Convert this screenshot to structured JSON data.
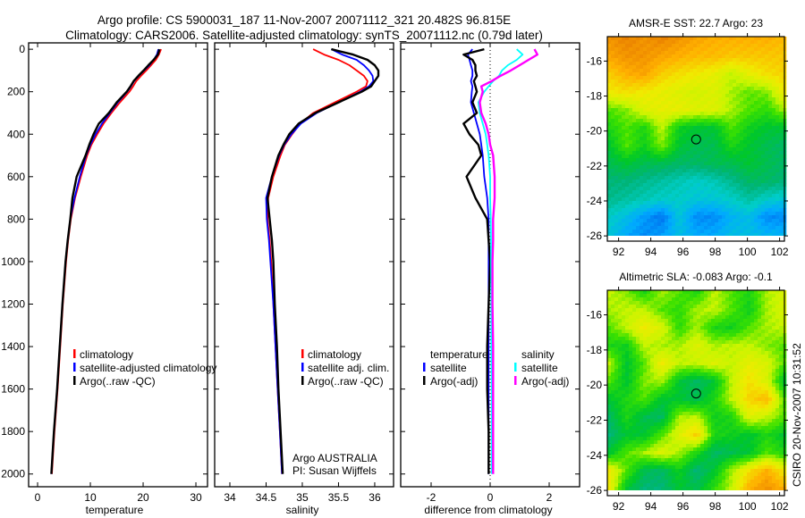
{
  "title": {
    "line1": "Argo profile: CS 5900031_187 11-Nov-2007 20071112_321 20.482S 96.815E",
    "line2": "Climatology: CARS2006. Satellite-adjusted climatology: synTS_20071112.nc (0.79d later)"
  },
  "footer_stamp": "CSIRO 20-Nov-2007 10:31:52",
  "credits": {
    "line1": "Argo AUSTRALIA",
    "line2": "PI: Susan Wijffels"
  },
  "chart_data": [
    {
      "type": "line",
      "id": "temperature",
      "xlabel": "temperature",
      "ylabel": "",
      "xlim": [
        -1.7,
        32.2
      ],
      "ylim": [
        2060,
        -30
      ],
      "xticks": [
        0,
        10,
        20,
        30
      ],
      "yticks": [
        0,
        200,
        400,
        600,
        800,
        1000,
        1200,
        1400,
        1600,
        1800,
        2000
      ],
      "depth": [
        0,
        25,
        50,
        75,
        100,
        125,
        150,
        175,
        200,
        250,
        300,
        350,
        400,
        450,
        500,
        600,
        700,
        800,
        900,
        1000,
        1200,
        1400,
        1600,
        1800,
        2000
      ],
      "series": [
        {
          "name": "climatology",
          "color": "#ff0000",
          "values": [
            23.4,
            23.0,
            22.4,
            21.5,
            20.6,
            19.6,
            18.7,
            18.1,
            17.4,
            15.6,
            14.0,
            12.5,
            11.3,
            10.2,
            9.4,
            8.2,
            7.1,
            6.3,
            5.8,
            5.4,
            4.8,
            4.3,
            3.8,
            3.2,
            2.7
          ]
        },
        {
          "name": "satellite-adjusted climatology",
          "color": "#0000ff",
          "values": [
            22.9,
            22.6,
            22.0,
            21.2,
            20.2,
            19.2,
            18.3,
            17.7,
            17.0,
            15.2,
            13.7,
            12.2,
            11.0,
            10.0,
            9.2,
            8.0,
            7.0,
            6.2,
            5.7,
            5.3,
            4.7,
            4.2,
            3.7,
            3.1,
            2.6
          ]
        },
        {
          "name": "Argo(..raw -QC)",
          "color": "#000000",
          "values": [
            23.1,
            22.8,
            22.0,
            21.0,
            20.1,
            19.1,
            18.2,
            17.6,
            16.9,
            15.0,
            13.5,
            11.6,
            10.6,
            9.8,
            9.1,
            7.4,
            6.6,
            6.2,
            5.7,
            5.3,
            4.7,
            4.2,
            3.7,
            3.1,
            2.6
          ]
        }
      ],
      "legend": [
        "climatology",
        "satellite-adjusted climatology",
        "Argo(..raw -QC)"
      ]
    },
    {
      "type": "line",
      "id": "salinity",
      "xlabel": "salinity",
      "xlim": [
        33.79,
        36.26
      ],
      "ylim": [
        2060,
        -30
      ],
      "xticks": [
        34,
        34.5,
        35,
        35.5,
        36
      ],
      "depth": [
        0,
        25,
        50,
        75,
        100,
        125,
        150,
        175,
        200,
        250,
        300,
        350,
        400,
        450,
        500,
        600,
        700,
        800,
        900,
        1000,
        1200,
        1400,
        1600,
        1800,
        2000
      ],
      "series": [
        {
          "name": "climatology",
          "color": "#ff0000",
          "values": [
            35.15,
            35.3,
            35.5,
            35.65,
            35.75,
            35.85,
            35.9,
            35.88,
            35.75,
            35.45,
            35.15,
            34.97,
            34.86,
            34.76,
            34.7,
            34.6,
            34.53,
            34.52,
            34.55,
            34.57,
            34.6,
            34.63,
            34.66,
            34.69,
            34.72
          ]
        },
        {
          "name": "satellite adj. clim.",
          "color": "#0000ff",
          "values": [
            35.4,
            35.55,
            35.75,
            35.85,
            35.92,
            35.97,
            35.98,
            35.92,
            35.8,
            35.5,
            35.2,
            34.98,
            34.85,
            34.75,
            34.68,
            34.58,
            34.5,
            34.51,
            34.54,
            34.56,
            34.6,
            34.63,
            34.66,
            34.69,
            34.72
          ]
        },
        {
          "name": "Argo(..raw -QC)",
          "color": "#000000",
          "values": [
            35.4,
            35.7,
            35.9,
            36.0,
            36.05,
            36.05,
            36.0,
            35.95,
            35.82,
            35.5,
            35.18,
            34.95,
            34.82,
            34.74,
            34.67,
            34.58,
            34.52,
            34.55,
            34.58,
            34.6,
            34.62,
            34.65,
            34.67,
            34.7,
            34.73
          ]
        }
      ],
      "legend": [
        "climatology",
        "satellite adj. clim.",
        "Argo(..raw -QC)"
      ]
    },
    {
      "type": "line",
      "id": "difference",
      "xlabel": "difference from climatology",
      "xlim": [
        -3.03,
        3.03
      ],
      "ylim": [
        2060,
        -30
      ],
      "xticks": [
        -2,
        0,
        2
      ],
      "depth": [
        0,
        25,
        50,
        75,
        100,
        125,
        150,
        175,
        200,
        250,
        300,
        350,
        400,
        450,
        500,
        600,
        700,
        800,
        900,
        1000,
        1200,
        1400,
        1600,
        1800,
        2000
      ],
      "series": [
        {
          "name": "temperature satellite",
          "group": "temperature",
          "label": "satellite",
          "color": "#0000ff",
          "values": [
            -0.6,
            -0.75,
            -0.7,
            -0.65,
            -0.6,
            -0.6,
            -0.65,
            -0.6,
            -0.62,
            -0.65,
            -0.55,
            -0.45,
            -0.35,
            -0.3,
            -0.25,
            -0.2,
            -0.1,
            -0.05,
            -0.05,
            -0.05,
            -0.05,
            -0.05,
            -0.05,
            -0.05,
            -0.05
          ]
        },
        {
          "name": "temperature Argo(-adj)",
          "group": "temperature",
          "label": "Argo(-adj)",
          "color": "#000000",
          "values": [
            -0.2,
            -0.9,
            -0.6,
            -0.5,
            -0.5,
            -0.45,
            -0.55,
            -0.5,
            -0.45,
            -0.6,
            -0.45,
            -0.9,
            -0.7,
            -0.4,
            -0.3,
            -0.8,
            -0.5,
            -0.1,
            -0.05,
            0,
            -0.05,
            -0.1,
            -0.1,
            -0.05,
            -0.05
          ]
        },
        {
          "name": "salinity satellite",
          "group": "salinity",
          "label": "satellite",
          "color": "#00ffff",
          "values": [
            0.9,
            1.1,
            0.9,
            0.6,
            0.4,
            0.3,
            0.1,
            -0.05,
            -0.2,
            -0.4,
            -0.35,
            -0.25,
            -0.15,
            -0.1,
            -0.05,
            0,
            0,
            0.02,
            0.03,
            0.03,
            0.04,
            0.04,
            0.05,
            0.05,
            0.05
          ]
        },
        {
          "name": "salinity Argo(-adj)",
          "group": "salinity",
          "label": "Argo(-adj)",
          "color": "#ff00ff",
          "values": [
            1.5,
            1.6,
            1.3,
            1.0,
            0.7,
            0.35,
            0.05,
            -0.3,
            -0.25,
            -0.35,
            -0.3,
            -0.15,
            -0.05,
            0,
            0.1,
            0.15,
            0.15,
            0.1,
            0.1,
            0.08,
            0.08,
            0.1,
            0.1,
            0.1,
            0.1
          ]
        }
      ],
      "legend_headers": [
        "temperature",
        "salinity"
      ],
      "legend_labels": [
        "satellite",
        "Argo(-adj)"
      ]
    },
    {
      "type": "heatmap",
      "id": "sst",
      "title": "AMSR-E SST: 22.7 Argo: 23",
      "xlim": [
        91.3,
        102.3
      ],
      "ylim": [
        -26.3,
        -14.6
      ],
      "xticks": [
        92,
        94,
        96,
        98,
        100,
        102
      ],
      "yticks": [
        -16,
        -18,
        -20,
        -22,
        -24,
        -26
      ],
      "marker": {
        "lon": 96.815,
        "lat": -20.482
      },
      "grid_note": "normalized colour index 0 (blue) .. 1 (orange)",
      "grid": [
        [
          0.85,
          0.88,
          0.85,
          0.88,
          0.85,
          0.82,
          0.8,
          0.8,
          0.8,
          0.8,
          0.78
        ],
        [
          0.82,
          0.85,
          0.85,
          0.82,
          0.8,
          0.78,
          0.78,
          0.76,
          0.76,
          0.76,
          0.76
        ],
        [
          0.75,
          0.8,
          0.82,
          0.75,
          0.72,
          0.7,
          0.68,
          0.62,
          0.68,
          0.72,
          0.74
        ],
        [
          0.7,
          0.72,
          0.7,
          0.68,
          0.66,
          0.64,
          0.66,
          0.6,
          0.56,
          0.58,
          0.7
        ],
        [
          0.55,
          0.58,
          0.66,
          0.68,
          0.68,
          0.66,
          0.66,
          0.6,
          0.55,
          0.52,
          0.6
        ],
        [
          0.5,
          0.55,
          0.5,
          0.62,
          0.48,
          0.45,
          0.45,
          0.55,
          0.48,
          0.45,
          0.45
        ],
        [
          0.45,
          0.55,
          0.48,
          0.58,
          0.45,
          0.42,
          0.42,
          0.5,
          0.45,
          0.42,
          0.4
        ],
        [
          0.42,
          0.45,
          0.42,
          0.42,
          0.4,
          0.4,
          0.42,
          0.42,
          0.45,
          0.42,
          0.4
        ],
        [
          0.38,
          0.38,
          0.36,
          0.34,
          0.32,
          0.3,
          0.32,
          0.36,
          0.4,
          0.4,
          0.38
        ],
        [
          0.36,
          0.34,
          0.32,
          0.3,
          0.3,
          0.28,
          0.28,
          0.3,
          0.34,
          0.3,
          0.28
        ],
        [
          0.3,
          0.26,
          0.2,
          0.15,
          0.28,
          0.18,
          0.18,
          0.24,
          0.26,
          0.18,
          0.18
        ],
        [
          0.28,
          0.22,
          0.18,
          0.2,
          0.26,
          0.22,
          0.22,
          0.26,
          0.26,
          0.24,
          0.24
        ]
      ]
    },
    {
      "type": "heatmap",
      "id": "sla",
      "title": "Altimetric SLA: -0.083 Argo: -0.1",
      "xlim": [
        91.3,
        102.3
      ],
      "ylim": [
        -26.3,
        -14.6
      ],
      "xticks": [
        92,
        94,
        96,
        98,
        100,
        102
      ],
      "yticks": [
        -16,
        -18,
        -20,
        -22,
        -24,
        -26
      ],
      "marker": {
        "lon": 96.815,
        "lat": -20.482
      },
      "grid": [
        [
          0.62,
          0.58,
          0.5,
          0.6,
          0.55,
          0.5,
          0.62,
          0.55,
          0.5,
          0.6,
          0.65
        ],
        [
          0.6,
          0.62,
          0.62,
          0.55,
          0.52,
          0.6,
          0.62,
          0.55,
          0.48,
          0.6,
          0.65
        ],
        [
          0.55,
          0.62,
          0.7,
          0.65,
          0.52,
          0.6,
          0.5,
          0.48,
          0.55,
          0.6,
          0.62
        ],
        [
          0.5,
          0.48,
          0.62,
          0.6,
          0.6,
          0.66,
          0.6,
          0.62,
          0.62,
          0.58,
          0.55
        ],
        [
          0.62,
          0.45,
          0.55,
          0.7,
          0.62,
          0.62,
          0.66,
          0.62,
          0.68,
          0.65,
          0.55
        ],
        [
          0.55,
          0.45,
          0.58,
          0.6,
          0.45,
          0.4,
          0.45,
          0.62,
          0.72,
          0.65,
          0.45
        ],
        [
          0.45,
          0.5,
          0.55,
          0.45,
          0.45,
          0.42,
          0.5,
          0.62,
          0.74,
          0.78,
          0.55
        ],
        [
          0.4,
          0.5,
          0.42,
          0.4,
          0.6,
          0.62,
          0.48,
          0.5,
          0.66,
          0.62,
          0.55
        ],
        [
          0.38,
          0.45,
          0.45,
          0.55,
          0.66,
          0.75,
          0.5,
          0.48,
          0.45,
          0.5,
          0.45
        ],
        [
          0.45,
          0.55,
          0.6,
          0.66,
          0.6,
          0.5,
          0.4,
          0.42,
          0.45,
          0.55,
          0.5
        ],
        [
          0.7,
          0.55,
          0.42,
          0.4,
          0.48,
          0.38,
          0.45,
          0.6,
          0.72,
          0.8,
          0.7
        ],
        [
          0.7,
          0.45,
          0.38,
          0.38,
          0.45,
          0.42,
          0.52,
          0.62,
          0.8,
          0.85,
          0.8
        ]
      ]
    }
  ]
}
